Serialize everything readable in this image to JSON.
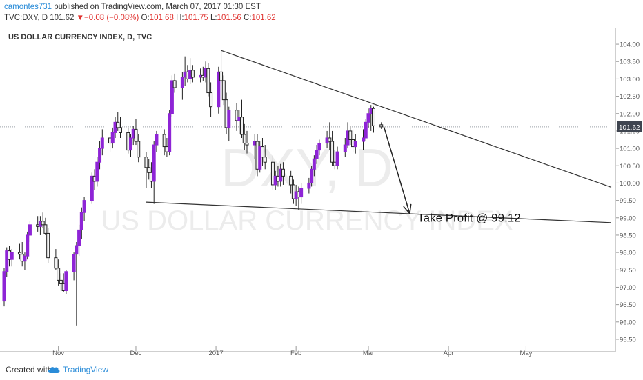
{
  "header": {
    "username": "camontes731",
    "published_text": "published on TradingView.com, March 07, 2017 01:30 EST",
    "symbol": "TVC:DXY, D",
    "last_price": "101.62",
    "change": "−0.08 (−0.08%)",
    "open_label": "O:",
    "open": "101.68",
    "high_label": "H:",
    "high": "101.75",
    "low_label": "L:",
    "low": "101.56",
    "close_label": "C:",
    "close": "101.62"
  },
  "chart_title": "US DOLLAR CURRENCY INDEX, D, TVC",
  "watermark": {
    "symbol": "DXY, D",
    "name": "US DOLLAR CURRENCY INDEX"
  },
  "annotation": "Take Profit @ 99.12",
  "footer": {
    "created_with": "Created with",
    "brand": "TradingView"
  },
  "colors": {
    "up": "#8e24d6",
    "down": "#f2f2f2",
    "price_tag": "#3f4550",
    "trendline": "#333333",
    "brand": "#2a8cd8"
  },
  "chart_data": {
    "type": "candlestick",
    "title": "US DOLLAR CURRENCY INDEX, D, TVC",
    "y_ticks": [
      "95.50",
      "96.00",
      "96.50",
      "97.00",
      "97.50",
      "98.00",
      "98.50",
      "99.00",
      "99.50",
      "100.00",
      "100.50",
      "101.00",
      "101.50",
      "102.00",
      "102.50",
      "103.00",
      "103.50",
      "104.00"
    ],
    "ylim": [
      95.4,
      104.2
    ],
    "x_ticks": [
      "Nov",
      "Dec",
      "2017",
      "Feb",
      "Mar",
      "Apr",
      "May"
    ],
    "x_tick_dates": [
      "2016-11-01",
      "2016-12-01",
      "2017-01-01",
      "2017-02-01",
      "2017-03-01",
      "2017-04-01",
      "2017-05-01"
    ],
    "xlim": [
      "2016-10-11",
      "2017-06-03"
    ],
    "last_price": 101.62,
    "candles": [
      [
        "2016-10-11",
        96.6,
        97.55,
        96.45,
        97.45
      ],
      [
        "2016-10-12",
        97.45,
        98.15,
        97.3,
        98.05
      ],
      [
        "2016-10-13",
        98.05,
        98.2,
        97.6,
        97.8
      ],
      [
        "2016-10-14",
        97.8,
        98.1,
        97.6,
        98.0
      ],
      [
        "2016-10-17",
        98.0,
        98.25,
        97.8,
        97.95
      ],
      [
        "2016-10-18",
        97.95,
        98.3,
        97.6,
        97.75
      ],
      [
        "2016-10-19",
        97.75,
        98.0,
        97.5,
        97.9
      ],
      [
        "2016-10-20",
        97.9,
        98.6,
        97.8,
        98.5
      ],
      [
        "2016-10-21",
        98.5,
        98.9,
        98.3,
        98.8
      ],
      [
        "2016-10-24",
        98.8,
        99.05,
        98.6,
        98.75
      ],
      [
        "2016-10-25",
        98.75,
        99.05,
        98.5,
        98.9
      ],
      [
        "2016-10-26",
        98.9,
        99.15,
        98.7,
        98.8
      ],
      [
        "2016-10-27",
        98.8,
        99.0,
        98.5,
        98.55
      ],
      [
        "2016-10-28",
        98.55,
        98.7,
        97.7,
        97.85
      ],
      [
        "2016-10-31",
        97.85,
        98.1,
        97.5,
        97.55
      ],
      [
        "2016-11-01",
        97.55,
        97.8,
        97.05,
        97.2
      ],
      [
        "2016-11-02",
        97.2,
        97.4,
        96.9,
        97.1
      ],
      [
        "2016-11-03",
        97.1,
        97.4,
        96.85,
        96.9
      ],
      [
        "2016-11-04",
        96.9,
        97.5,
        96.8,
        97.45
      ],
      [
        "2016-11-07",
        97.45,
        98.0,
        97.2,
        97.95
      ],
      [
        "2016-11-08",
        97.95,
        98.3,
        95.9,
        98.2
      ],
      [
        "2016-11-09",
        98.2,
        98.8,
        97.9,
        98.65
      ],
      [
        "2016-11-10",
        98.65,
        99.3,
        98.4,
        99.15
      ],
      [
        "2016-11-11",
        99.15,
        99.6,
        98.9,
        99.5
      ],
      [
        "2016-11-14",
        99.5,
        100.3,
        99.4,
        100.2
      ],
      [
        "2016-11-15",
        100.2,
        100.4,
        99.8,
        100.05
      ],
      [
        "2016-11-16",
        100.05,
        100.75,
        99.9,
        100.6
      ],
      [
        "2016-11-17",
        100.6,
        101.2,
        100.4,
        101.0
      ],
      [
        "2016-11-18",
        101.0,
        101.55,
        100.8,
        101.3
      ],
      [
        "2016-11-21",
        101.3,
        101.45,
        100.9,
        101.15
      ],
      [
        "2016-11-22",
        101.15,
        101.6,
        101.0,
        101.45
      ],
      [
        "2016-11-23",
        101.45,
        101.9,
        101.3,
        101.75
      ],
      [
        "2016-11-24",
        101.75,
        102.05,
        101.5,
        101.6
      ],
      [
        "2016-11-25",
        101.6,
        101.9,
        101.3,
        101.45
      ],
      [
        "2016-11-28",
        101.45,
        101.6,
        100.85,
        100.95
      ],
      [
        "2016-11-29",
        100.95,
        101.4,
        100.75,
        101.3
      ],
      [
        "2016-11-30",
        101.3,
        101.65,
        101.1,
        101.55
      ],
      [
        "2016-12-01",
        101.55,
        101.85,
        101.1,
        101.2
      ],
      [
        "2016-12-02",
        101.2,
        101.4,
        100.6,
        100.75
      ],
      [
        "2016-12-05",
        100.75,
        100.9,
        99.85,
        100.45
      ],
      [
        "2016-12-06",
        100.45,
        100.7,
        100.1,
        100.3
      ],
      [
        "2016-12-07",
        100.3,
        100.6,
        99.85,
        100.05
      ],
      [
        "2016-12-08",
        100.05,
        101.2,
        99.4,
        101.1
      ],
      [
        "2016-12-09",
        101.1,
        101.5,
        100.9,
        101.4
      ],
      [
        "2016-12-12",
        101.4,
        101.55,
        100.8,
        101.05
      ],
      [
        "2016-12-13",
        101.05,
        101.3,
        100.75,
        100.9
      ],
      [
        "2016-12-14",
        100.9,
        102.1,
        100.8,
        102.0
      ],
      [
        "2016-12-15",
        102.0,
        103.1,
        101.9,
        102.95
      ],
      [
        "2016-12-16",
        102.95,
        103.15,
        102.6,
        102.75
      ],
      [
        "2016-12-19",
        102.75,
        103.2,
        102.4,
        103.05
      ],
      [
        "2016-12-20",
        103.05,
        103.65,
        102.8,
        103.2
      ],
      [
        "2016-12-21",
        103.2,
        103.4,
        102.9,
        103.0
      ],
      [
        "2016-12-22",
        103.0,
        103.6,
        102.85,
        103.25
      ],
      [
        "2016-12-23",
        103.25,
        103.4,
        102.9,
        103.05
      ],
      [
        "2016-12-26",
        103.05,
        103.3,
        102.9,
        103.1
      ],
      [
        "2016-12-27",
        103.1,
        103.35,
        102.95,
        103.05
      ],
      [
        "2016-12-28",
        103.05,
        103.5,
        102.9,
        103.3
      ],
      [
        "2016-12-29",
        103.3,
        103.45,
        102.5,
        102.6
      ],
      [
        "2016-12-30",
        102.6,
        102.9,
        101.9,
        102.2
      ],
      [
        "2017-01-02",
        102.2,
        103.35,
        102.0,
        103.2
      ],
      [
        "2017-01-03",
        103.2,
        103.82,
        102.9,
        102.95
      ],
      [
        "2017-01-04",
        102.95,
        103.1,
        102.25,
        102.4
      ],
      [
        "2017-01-05",
        102.4,
        102.6,
        101.4,
        101.6
      ],
      [
        "2017-01-06",
        101.6,
        102.2,
        101.2,
        102.1
      ],
      [
        "2017-01-09",
        102.1,
        102.3,
        101.5,
        101.8
      ],
      [
        "2017-01-10",
        101.8,
        102.1,
        101.4,
        101.9
      ],
      [
        "2017-01-11",
        101.9,
        102.4,
        101.3,
        101.4
      ],
      [
        "2017-01-12",
        101.4,
        101.7,
        100.95,
        101.15
      ],
      [
        "2017-01-13",
        101.15,
        101.5,
        100.85,
        101.1
      ],
      [
        "2017-01-16",
        101.1,
        101.4,
        100.7,
        101.2
      ],
      [
        "2017-01-17",
        101.2,
        101.4,
        100.2,
        100.4
      ],
      [
        "2017-01-18",
        100.4,
        101.2,
        100.3,
        101.05
      ],
      [
        "2017-01-19",
        101.05,
        101.3,
        100.5,
        100.75
      ],
      [
        "2017-01-20",
        100.75,
        101.1,
        100.4,
        100.6
      ],
      [
        "2017-01-23",
        100.6,
        100.8,
        99.8,
        99.95
      ],
      [
        "2017-01-24",
        99.95,
        100.35,
        99.8,
        100.2
      ],
      [
        "2017-01-25",
        100.2,
        100.5,
        99.9,
        100.05
      ],
      [
        "2017-01-26",
        100.05,
        100.55,
        99.9,
        100.4
      ],
      [
        "2017-01-27",
        100.4,
        100.6,
        99.95,
        100.2
      ],
      [
        "2017-01-30",
        100.2,
        100.35,
        99.7,
        99.95
      ],
      [
        "2017-01-31",
        99.95,
        100.1,
        99.4,
        99.55
      ],
      [
        "2017-02-01",
        99.55,
        99.95,
        99.35,
        99.75
      ],
      [
        "2017-02-02",
        99.75,
        99.9,
        99.23,
        99.6
      ],
      [
        "2017-02-03",
        99.6,
        100.0,
        99.4,
        99.85
      ],
      [
        "2017-02-06",
        99.85,
        100.15,
        99.7,
        100.0
      ],
      [
        "2017-02-07",
        100.0,
        100.5,
        99.9,
        100.4
      ],
      [
        "2017-02-08",
        100.4,
        100.8,
        100.2,
        100.7
      ],
      [
        "2017-02-09",
        100.7,
        101.1,
        100.55,
        100.95
      ],
      [
        "2017-02-10",
        100.95,
        101.25,
        100.8,
        101.15
      ],
      [
        "2017-02-13",
        101.15,
        101.5,
        101.0,
        101.3
      ],
      [
        "2017-02-14",
        101.3,
        101.75,
        100.95,
        101.2
      ],
      [
        "2017-02-15",
        101.2,
        101.5,
        100.5,
        100.6
      ],
      [
        "2017-02-16",
        100.6,
        100.95,
        100.4,
        100.5
      ],
      [
        "2017-02-17",
        100.5,
        101.05,
        100.4,
        100.9
      ],
      [
        "2017-02-20",
        100.9,
        101.3,
        100.75,
        101.1
      ],
      [
        "2017-02-21",
        101.1,
        101.75,
        101.0,
        101.5
      ],
      [
        "2017-02-22",
        101.5,
        101.65,
        101.1,
        101.25
      ],
      [
        "2017-02-23",
        101.25,
        101.55,
        100.9,
        101.05
      ],
      [
        "2017-02-24",
        101.05,
        101.4,
        100.85,
        101.2
      ],
      [
        "2017-02-27",
        101.2,
        101.55,
        100.95,
        101.3
      ],
      [
        "2017-02-28",
        101.3,
        101.85,
        101.2,
        101.75
      ],
      [
        "2017-03-01",
        101.75,
        102.15,
        101.6,
        102.0
      ],
      [
        "2017-03-02",
        102.0,
        102.25,
        101.5,
        102.15
      ],
      [
        "2017-03-03",
        102.15,
        102.2,
        101.45,
        101.65
      ],
      [
        "2017-03-06",
        101.68,
        101.75,
        101.56,
        101.62
      ]
    ],
    "trendlines": [
      {
        "from": [
          "2017-01-03",
          103.82
        ],
        "to": [
          "2017-06-03",
          99.88
        ]
      },
      {
        "from": [
          "2016-12-05",
          99.45
        ],
        "to": [
          "2017-06-03",
          98.86
        ]
      }
    ],
    "arrow": {
      "from": [
        "2017-03-07",
        101.62
      ],
      "to": [
        "2017-03-17",
        99.12
      ]
    },
    "annotations": [
      {
        "text": "Take Profit @ 99.12",
        "at": [
          "2017-03-20",
          99.12
        ]
      }
    ]
  }
}
